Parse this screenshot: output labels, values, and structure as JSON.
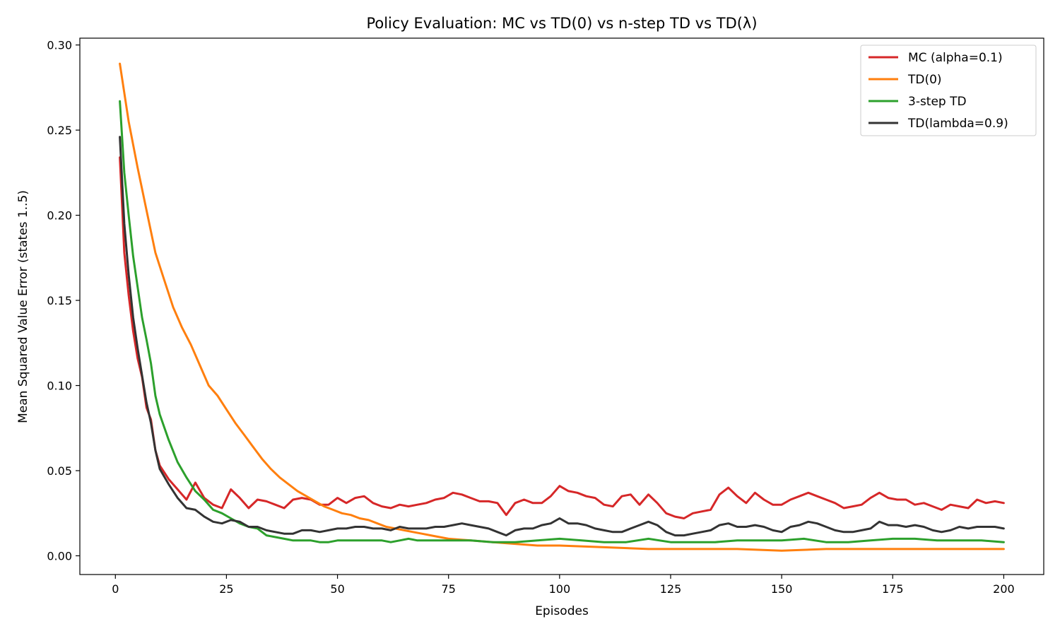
{
  "chart_data": {
    "type": "line",
    "title": "Policy Evaluation: MC vs TD(0) vs n-step TD vs TD(λ)",
    "xlabel": "Episodes",
    "ylabel": "Mean Squared Value Error (states 1..5)",
    "xlim": [
      -8,
      209
    ],
    "ylim": [
      -0.011,
      0.304
    ],
    "xticks": [
      0,
      25,
      50,
      75,
      100,
      125,
      150,
      175,
      200
    ],
    "yticks": [
      0.0,
      0.05,
      0.1,
      0.15,
      0.2,
      0.25,
      0.3
    ],
    "ytick_labels": [
      "0.00",
      "0.05",
      "0.10",
      "0.15",
      "0.20",
      "0.25",
      "0.30"
    ],
    "grid": false,
    "legend_position": "top-right",
    "series": [
      {
        "name": "MC (alpha=0.1)",
        "color": "#d62728",
        "x": [
          1,
          2,
          3,
          4,
          5,
          6,
          7,
          8,
          9,
          10,
          12,
          14,
          16,
          18,
          20,
          22,
          24,
          26,
          28,
          30,
          32,
          34,
          36,
          38,
          40,
          42,
          44,
          46,
          48,
          50,
          52,
          54,
          56,
          58,
          60,
          62,
          64,
          66,
          68,
          70,
          72,
          74,
          76,
          78,
          80,
          82,
          84,
          86,
          88,
          90,
          92,
          94,
          96,
          98,
          100,
          102,
          104,
          106,
          108,
          110,
          112,
          114,
          116,
          118,
          120,
          122,
          124,
          126,
          128,
          130,
          132,
          134,
          136,
          138,
          140,
          142,
          144,
          146,
          148,
          150,
          152,
          154,
          156,
          158,
          160,
          162,
          164,
          166,
          168,
          170,
          172,
          174,
          176,
          178,
          180,
          182,
          184,
          186,
          188,
          190,
          192,
          194,
          196,
          198,
          200
        ],
        "y": [
          0.234,
          0.178,
          0.153,
          0.132,
          0.116,
          0.105,
          0.087,
          0.08,
          0.062,
          0.053,
          0.045,
          0.039,
          0.033,
          0.043,
          0.034,
          0.03,
          0.028,
          0.039,
          0.034,
          0.028,
          0.033,
          0.032,
          0.03,
          0.028,
          0.033,
          0.034,
          0.033,
          0.03,
          0.03,
          0.034,
          0.031,
          0.034,
          0.035,
          0.031,
          0.029,
          0.028,
          0.03,
          0.029,
          0.03,
          0.031,
          0.033,
          0.034,
          0.037,
          0.036,
          0.034,
          0.032,
          0.032,
          0.031,
          0.024,
          0.031,
          0.033,
          0.031,
          0.031,
          0.035,
          0.041,
          0.038,
          0.037,
          0.035,
          0.034,
          0.03,
          0.029,
          0.035,
          0.036,
          0.03,
          0.036,
          0.031,
          0.025,
          0.023,
          0.022,
          0.025,
          0.026,
          0.027,
          0.036,
          0.04,
          0.035,
          0.031,
          0.037,
          0.033,
          0.03,
          0.03,
          0.033,
          0.035,
          0.037,
          0.035,
          0.033,
          0.031,
          0.028,
          0.029,
          0.03,
          0.034,
          0.037,
          0.034,
          0.033,
          0.033,
          0.03,
          0.031,
          0.029,
          0.027,
          0.03,
          0.029,
          0.028,
          0.033,
          0.031,
          0.032,
          0.031
        ]
      },
      {
        "name": "TD(0)",
        "color": "#ff7f0e",
        "x": [
          1,
          3,
          5,
          7,
          9,
          11,
          13,
          15,
          17,
          19,
          21,
          23,
          25,
          27,
          29,
          31,
          33,
          35,
          37,
          39,
          41,
          43,
          45,
          47,
          49,
          51,
          53,
          55,
          57,
          59,
          61,
          63,
          65,
          67,
          69,
          71,
          73,
          75,
          80,
          85,
          90,
          95,
          100,
          110,
          120,
          130,
          140,
          150,
          160,
          170,
          180,
          190,
          200
        ],
        "y": [
          0.289,
          0.255,
          0.228,
          0.203,
          0.178,
          0.162,
          0.146,
          0.134,
          0.124,
          0.112,
          0.1,
          0.094,
          0.086,
          0.078,
          0.071,
          0.064,
          0.057,
          0.051,
          0.046,
          0.042,
          0.038,
          0.035,
          0.032,
          0.029,
          0.027,
          0.025,
          0.024,
          0.022,
          0.021,
          0.019,
          0.017,
          0.016,
          0.015,
          0.014,
          0.013,
          0.012,
          0.011,
          0.01,
          0.009,
          0.008,
          0.007,
          0.006,
          0.006,
          0.005,
          0.004,
          0.004,
          0.004,
          0.003,
          0.004,
          0.004,
          0.004,
          0.004,
          0.004
        ]
      },
      {
        "name": "3-step TD",
        "color": "#2ca02c",
        "x": [
          1,
          2,
          3,
          4,
          5,
          6,
          7,
          8,
          9,
          10,
          12,
          14,
          16,
          18,
          20,
          22,
          24,
          26,
          28,
          30,
          32,
          34,
          36,
          38,
          40,
          42,
          44,
          46,
          48,
          50,
          52,
          54,
          56,
          58,
          60,
          62,
          64,
          66,
          68,
          70,
          75,
          80,
          85,
          90,
          95,
          100,
          105,
          110,
          115,
          120,
          125,
          130,
          135,
          140,
          145,
          150,
          155,
          160,
          165,
          170,
          175,
          180,
          185,
          190,
          195,
          200
        ],
        "y": [
          0.267,
          0.225,
          0.2,
          0.176,
          0.158,
          0.14,
          0.127,
          0.113,
          0.094,
          0.083,
          0.068,
          0.055,
          0.046,
          0.038,
          0.033,
          0.027,
          0.025,
          0.022,
          0.019,
          0.017,
          0.016,
          0.012,
          0.011,
          0.01,
          0.009,
          0.009,
          0.009,
          0.008,
          0.008,
          0.009,
          0.009,
          0.009,
          0.009,
          0.009,
          0.009,
          0.008,
          0.009,
          0.01,
          0.009,
          0.009,
          0.009,
          0.009,
          0.008,
          0.008,
          0.009,
          0.01,
          0.009,
          0.008,
          0.008,
          0.01,
          0.008,
          0.008,
          0.008,
          0.009,
          0.009,
          0.009,
          0.01,
          0.008,
          0.008,
          0.009,
          0.01,
          0.01,
          0.009,
          0.009,
          0.009,
          0.008
        ]
      },
      {
        "name": "TD(lambda=0.9)",
        "color": "#333333",
        "x": [
          1,
          2,
          3,
          4,
          5,
          6,
          7,
          8,
          9,
          10,
          12,
          14,
          16,
          18,
          20,
          22,
          24,
          26,
          28,
          30,
          32,
          34,
          36,
          38,
          40,
          42,
          44,
          46,
          48,
          50,
          52,
          54,
          56,
          58,
          60,
          62,
          64,
          66,
          68,
          70,
          72,
          74,
          76,
          78,
          80,
          82,
          84,
          86,
          88,
          90,
          92,
          94,
          96,
          98,
          100,
          102,
          104,
          106,
          108,
          110,
          112,
          114,
          116,
          118,
          120,
          122,
          124,
          126,
          128,
          130,
          132,
          134,
          136,
          138,
          140,
          142,
          144,
          146,
          148,
          150,
          152,
          154,
          156,
          158,
          160,
          162,
          164,
          166,
          168,
          170,
          172,
          174,
          176,
          178,
          180,
          182,
          184,
          186,
          188,
          190,
          192,
          194,
          196,
          198,
          200
        ],
        "y": [
          0.246,
          0.195,
          0.165,
          0.14,
          0.122,
          0.106,
          0.09,
          0.078,
          0.062,
          0.051,
          0.042,
          0.034,
          0.028,
          0.027,
          0.023,
          0.02,
          0.019,
          0.021,
          0.02,
          0.017,
          0.017,
          0.015,
          0.014,
          0.013,
          0.013,
          0.015,
          0.015,
          0.014,
          0.015,
          0.016,
          0.016,
          0.017,
          0.017,
          0.016,
          0.016,
          0.015,
          0.017,
          0.016,
          0.016,
          0.016,
          0.017,
          0.017,
          0.018,
          0.019,
          0.018,
          0.017,
          0.016,
          0.014,
          0.012,
          0.015,
          0.016,
          0.016,
          0.018,
          0.019,
          0.022,
          0.019,
          0.019,
          0.018,
          0.016,
          0.015,
          0.014,
          0.014,
          0.016,
          0.018,
          0.02,
          0.018,
          0.014,
          0.012,
          0.012,
          0.013,
          0.014,
          0.015,
          0.018,
          0.019,
          0.017,
          0.017,
          0.018,
          0.017,
          0.015,
          0.014,
          0.017,
          0.018,
          0.02,
          0.019,
          0.017,
          0.015,
          0.014,
          0.014,
          0.015,
          0.016,
          0.02,
          0.018,
          0.018,
          0.017,
          0.018,
          0.017,
          0.015,
          0.014,
          0.015,
          0.017,
          0.016,
          0.017,
          0.017,
          0.017,
          0.016
        ]
      }
    ]
  }
}
